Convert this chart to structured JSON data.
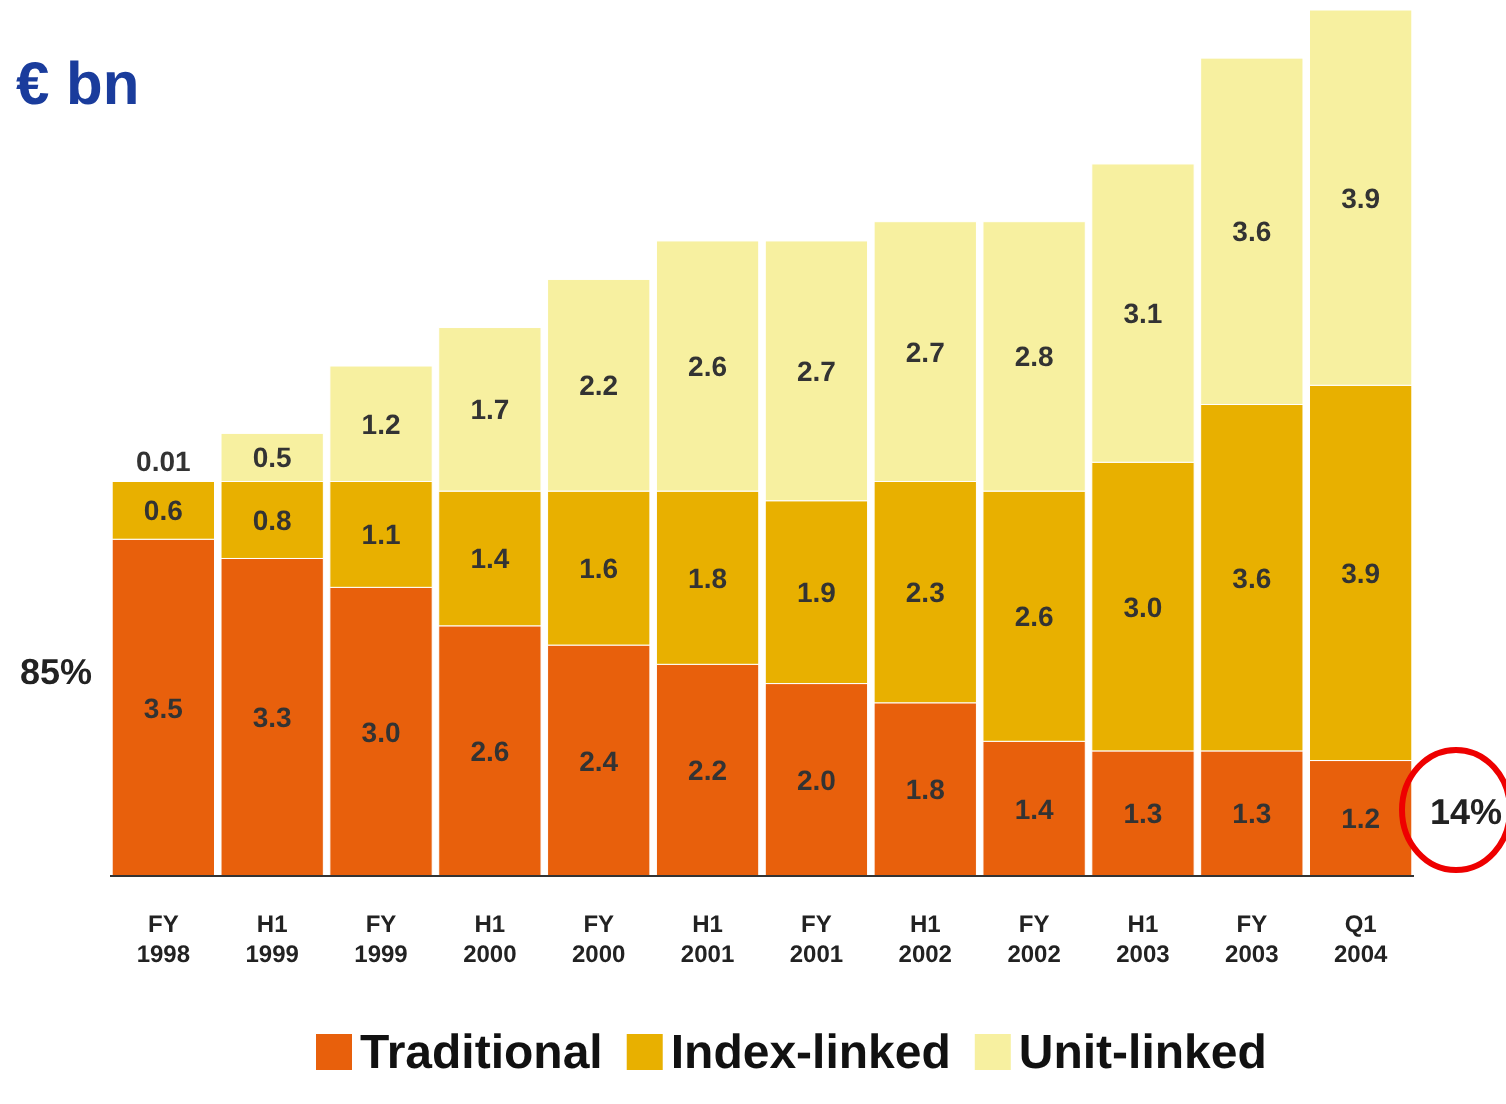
{
  "chart_data": {
    "type": "bar",
    "stacked": true,
    "title": "€ bn",
    "categories": [
      "FY 1998",
      "H1 1999",
      "FY 1999",
      "H1 2000",
      "FY 2000",
      "H1 2001",
      "FY 2001",
      "H1 2002",
      "FY 2002",
      "H1 2003",
      "FY 2003",
      "Q1 2004"
    ],
    "series": [
      {
        "name": "Traditional",
        "color": "#e8600c",
        "values": [
          3.5,
          3.3,
          3.0,
          2.6,
          2.4,
          2.2,
          2.0,
          1.8,
          1.4,
          1.3,
          1.3,
          1.2
        ],
        "value_labels": [
          "3.5",
          "3.3",
          "3.0",
          "2.6",
          "2.4",
          "2.2",
          "2.0",
          "1.8",
          "1.4",
          "1.3",
          "1.3",
          "1.2"
        ]
      },
      {
        "name": "Index-linked",
        "color": "#e8b000",
        "values": [
          0.6,
          0.8,
          1.1,
          1.4,
          1.6,
          1.8,
          1.9,
          2.3,
          2.6,
          3.0,
          3.6,
          3.9
        ],
        "value_labels": [
          "0.6",
          "0.8",
          "1.1",
          "1.4",
          "1.6",
          "1.8",
          "1.9",
          "2.3",
          "2.6",
          "3.0",
          "3.6",
          "3.9"
        ]
      },
      {
        "name": "Unit-linked",
        "color": "#f7f0a0",
        "values": [
          0.01,
          0.5,
          1.2,
          1.7,
          2.2,
          2.6,
          2.7,
          2.7,
          2.8,
          3.1,
          3.6,
          3.9
        ],
        "value_labels": [
          "0.01",
          "0.5",
          "1.2",
          "1.7",
          "2.2",
          "2.6",
          "2.7",
          "2.7",
          "2.8",
          "3.1",
          "3.6",
          "3.9"
        ]
      }
    ],
    "legend": "bottom",
    "grid": false,
    "annotations": [
      "85%",
      "14%"
    ]
  }
}
